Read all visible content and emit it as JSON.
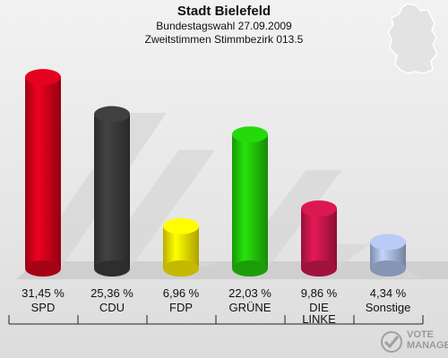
{
  "header": {
    "title": "Stadt Bielefeld",
    "subtitle": "Bundestagswahl 27.09.2009",
    "subtitle2": "Zweitstimmen Stimmbezirk 013.5"
  },
  "logo": {
    "line1": "VOTE",
    "line2": "MANAGER"
  },
  "chart_data": {
    "type": "bar",
    "title": "Stadt Bielefeld",
    "categories": [
      "SPD",
      "CDU",
      "FDP",
      "GRÜNE",
      "DIE LINKE",
      "Sonstige"
    ],
    "category_lines": [
      [
        "SPD"
      ],
      [
        "CDU"
      ],
      [
        "FDP"
      ],
      [
        "GRÜNE"
      ],
      [
        "DIE",
        "LINKE"
      ],
      [
        "Sonstige"
      ]
    ],
    "values": [
      31.45,
      25.36,
      6.96,
      22.03,
      9.86,
      4.34
    ],
    "value_labels": [
      "31,45 %",
      "25,36 %",
      "6,96 %",
      "22,03 %",
      "9,86 %",
      "4,34 %"
    ],
    "colors": [
      "#d0021b",
      "#3a3a3a",
      "#f5e600",
      "#22c60a",
      "#c8164a",
      "#a9b9e0"
    ],
    "ylim": [
      0,
      35
    ],
    "grid": false
  }
}
